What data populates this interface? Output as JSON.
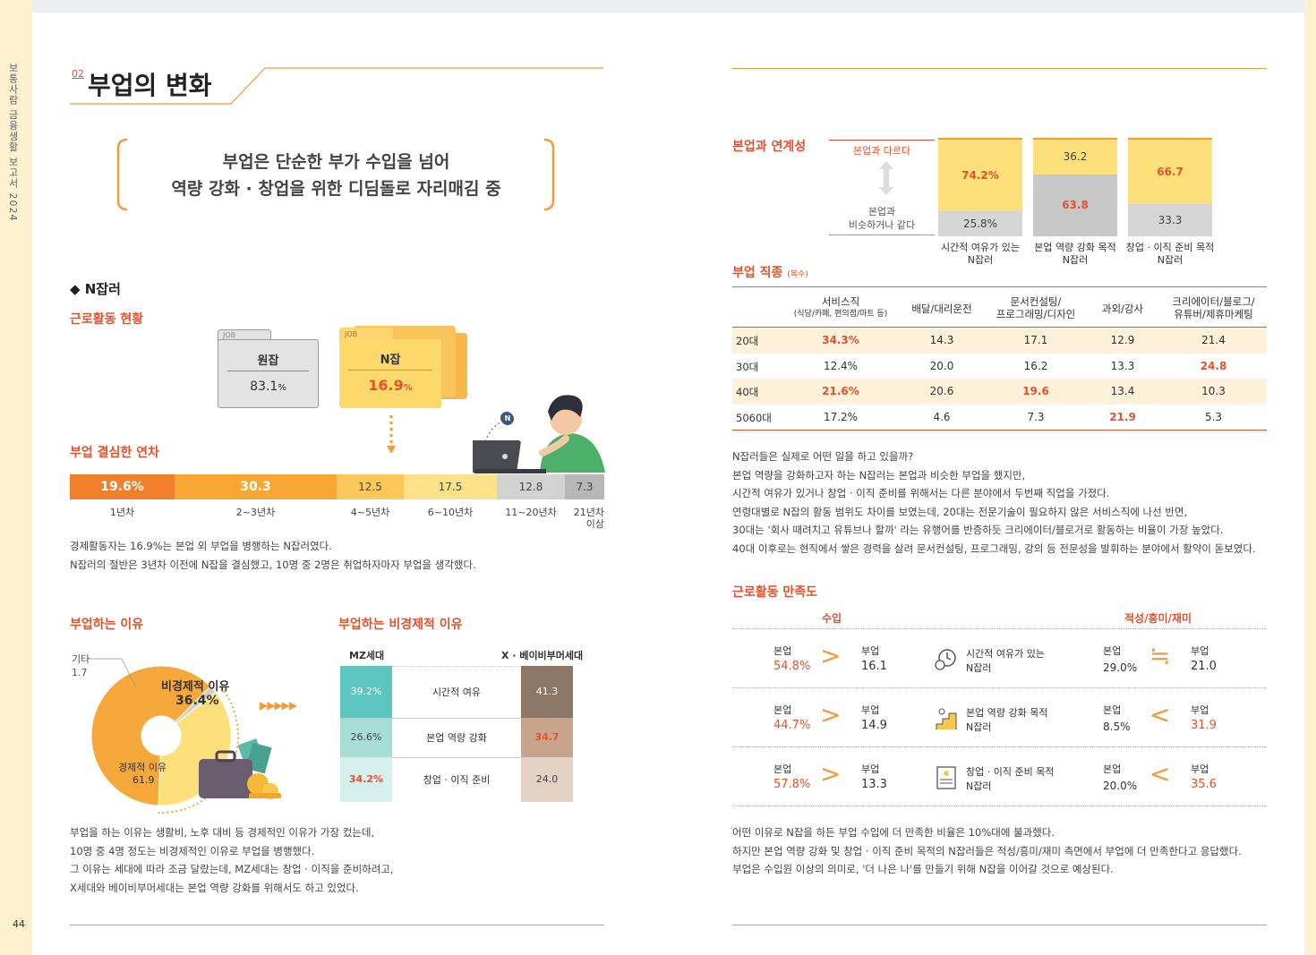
{
  "left_page": {
    "side_title": "보통사람 금융생활 보고서 2024",
    "page_number": "44",
    "section_number": "02",
    "section_title": "부업의 변화",
    "callout_line1": "부업은 단순한 부가 수입을 넘어",
    "callout_line2": "역량 강화 · 창업을 위한 디딤돌로 자리매김 중",
    "n_heading": "◆ N잡러",
    "work_status_title": "근로활동 현황",
    "folder_job_tag": "JOB",
    "folder1_label": "원잡",
    "folder1_value": "83.1",
    "folder1_unit": "%",
    "folder2_label": "N잡",
    "folder2_value": "16.9",
    "folder2_unit": "%",
    "badge_n": "N",
    "year_title": "부업 결심한 연차",
    "year_segments": [
      {
        "value": "19.6%",
        "label": "1년차",
        "color": "#f0812a",
        "share": 19.6
      },
      {
        "value": "30.3",
        "label": "2~3년차",
        "color": "#f8a832",
        "share": 30.3
      },
      {
        "value": "12.5",
        "label": "4~5년차",
        "color": "#fcc85a",
        "share": 12.5
      },
      {
        "value": "17.5",
        "label": "6~10년차",
        "color": "#fde28a",
        "share": 17.5
      },
      {
        "value": "12.8",
        "label": "11~20년차",
        "color": "#d2d2d2",
        "share": 12.8
      },
      {
        "value": "7.3",
        "label": "21년차\n이상",
        "color": "#b7b7b7",
        "share": 7.3
      }
    ],
    "year_text": [
      "경제활동자는 16.9%는 본업 외 부업을 병행하는 N잡러였다.",
      "N잡러의 절반은 3년차 이전에 N잡을 결심했고, 10명 중 2명은 취업하자마자 부업을 생각했다."
    ],
    "reason_title": "부업하는 이유",
    "reason_other_label": "기타",
    "reason_other_value": "1.7",
    "reason_noneco_label": "비경제적 이유",
    "reason_noneco_value": "36.4%",
    "reason_eco_label": "경제적 이유",
    "reason_eco_value": "61.9",
    "pie": {
      "economic": 61.9,
      "non_economic": 36.4,
      "other": 1.7
    },
    "arrows": "▶▶▶▶▶",
    "noneco_title": "부업하는 비경제적 이유",
    "noneco_col_left": "MZ세대",
    "noneco_col_right": "X · 베이비부머세대",
    "noneco_rows": [
      {
        "label": "시간적 여유",
        "mz": "39.2%",
        "x": "41.3",
        "mz_color": "#5cc5bd",
        "x_color": "#8c7766"
      },
      {
        "label": "본업 역량 강화",
        "mz": "26.6%",
        "x": "34.7",
        "mz_color": "#a6ddd7",
        "x_color": "#c7a48c"
      },
      {
        "label": "창업 · 이직 준비",
        "mz": "34.2%",
        "x": "24.0",
        "mz_color": "#d4efec",
        "x_color": "#e3d2c4"
      }
    ],
    "reason_text": [
      "부업을 하는 이유는 생활비, 노후 대비 등 경제적인 이유가 가장 컸는데,",
      "10명 중 4명 정도는 비경제적인 이유로 부업을 병행했다.",
      "그 이유는 세대에 따라 조금 달랐는데, MZ세대는 창업 · 이직을 준비하려고,",
      "X세대와 베이비부머세대는 본업 역량 강화를 위해서도 하고 있었다."
    ]
  },
  "right_page": {
    "link_title": "본업과 연계성",
    "link_diff_label": "본업과 다르다",
    "link_same_label1": "본업과",
    "link_same_label2": "비슷하거나 같다",
    "link_bars": [
      {
        "top": "74.2%",
        "bottom": "25.8%",
        "top_pct": 74.2,
        "top_color": "#fde07a",
        "bottom_color": "#d6d6d6",
        "label1": "시간적 여유가 있는",
        "label2": "N잡러"
      },
      {
        "top": "36.2",
        "bottom": "63.8",
        "top_pct": 36.2,
        "top_color": "#fde07a",
        "bottom_color": "#c8c8c8",
        "label1": "본업 역량 강화 목적",
        "label2": "N잡러"
      },
      {
        "top": "66.7",
        "bottom": "33.3",
        "top_pct": 66.7,
        "top_color": "#fde07a",
        "bottom_color": "#d6d6d6",
        "label1": "창업 · 이직 준비 목적",
        "label2": "N잡러"
      }
    ],
    "job_title": "부업 직종",
    "job_title_note": "(복수)",
    "job_headers": [
      {
        "l1": "서비스직",
        "l2": "(식당/카페, 편의점/마트 등)"
      },
      {
        "l1": "배달/대리운전",
        "l2": ""
      },
      {
        "l1": "문서컨설팅/",
        "l2": "프로그래밍/디자인"
      },
      {
        "l1": "과외/강사",
        "l2": ""
      },
      {
        "l1": "크리에이터/블로그/",
        "l2": "유튜버/제휴마케팅"
      }
    ],
    "job_rows": [
      {
        "age": "20대",
        "vals": [
          "34.3%",
          "14.3",
          "17.1",
          "12.9",
          "21.4"
        ],
        "hl": [
          0
        ],
        "shade": true
      },
      {
        "age": "30대",
        "vals": [
          "12.4%",
          "20.0",
          "16.2",
          "13.3",
          "24.8"
        ],
        "hl": [
          4
        ],
        "shade": false
      },
      {
        "age": "40대",
        "vals": [
          "21.6%",
          "20.6",
          "19.6",
          "13.4",
          "10.3"
        ],
        "hl": [
          0,
          2
        ],
        "shade": true
      },
      {
        "age": "5060대",
        "vals": [
          "17.2%",
          "4.6",
          "7.3",
          "21.9",
          "5.3"
        ],
        "hl": [
          3
        ],
        "shade": false
      }
    ],
    "job_text": [
      "N잡러들은 실제로 어떤 일을 하고 있을까?",
      "본업 역량을 강화하고자 하는 N잡러는 본업과 비슷한 부업을 했지만,",
      "시간적 여유가 있거나 창업 · 이직 준비를 위해서는 다른 분야에서 두번째 직업을 가졌다.",
      "연령대별로 N잡의 활동 범위도 차이를 보였는데, 20대는 전문기술이 필요하지 않은 서비스직에 나선 반면,",
      "30대는 '회사 때려치고 유튜브나 할까' 라는 유행어를 반증하듯 크리에이터/블로거로 활동하는 비율이 가장 높았다.",
      "40대 이후로는 현직에서 쌓은 경력을 살려 문서컨설팅, 프로그래밍, 강의 등 전문성을 발휘하는 분야에서 활약이 돋보였다."
    ],
    "sat_title": "근로활동 만족도",
    "sat_col_income": "수입",
    "sat_col_aptitude": "적성/흥미/재미",
    "sat_main_label": "본업",
    "sat_side_label": "부업",
    "sat_rows": [
      {
        "inc_main": "54.8%",
        "inc_side": "16.1",
        "inc_sym": ">",
        "type1": "시간적 여유가 있는",
        "type2": "N잡러",
        "icon": "clock-gear-icon",
        "apt_main": "29.0%",
        "apt_side": "21.0",
        "apt_sym": "≒"
      },
      {
        "inc_main": "44.7%",
        "inc_side": "14.9",
        "inc_sym": ">",
        "type1": "본업 역량 강화 목적",
        "type2": "N잡러",
        "icon": "stairs-icon",
        "apt_main": "8.5%",
        "apt_side": "31.9",
        "apt_sym": "<"
      },
      {
        "inc_main": "57.8%",
        "inc_side": "13.3",
        "inc_sym": ">",
        "type1": "창업 · 이직 준비 목적",
        "type2": "N잡러",
        "icon": "document-person-icon",
        "apt_main": "20.0%",
        "apt_side": "35.6",
        "apt_sym": "<"
      }
    ],
    "sat_text": [
      "어떤 이유로 N잡을 하든 부업 수입에 더 만족한 비율은 10%대에 불과했다.",
      "하지만 본업 역량 강화 및 창업 · 이직 준비 목적의 N잡러들은 적성/흥미/재미 측면에서 부업에 더 만족한다고 응답했다.",
      "부업은 수입원 이상의 의미로, '더 나은 나'를 만들기 위해 N잡을 이어갈 것으로 예상된다."
    ]
  },
  "colors": {
    "accent": "#e8502b",
    "orange": "#f39a3b",
    "yellow": "#fde07a",
    "side": "#fdf1cf"
  }
}
